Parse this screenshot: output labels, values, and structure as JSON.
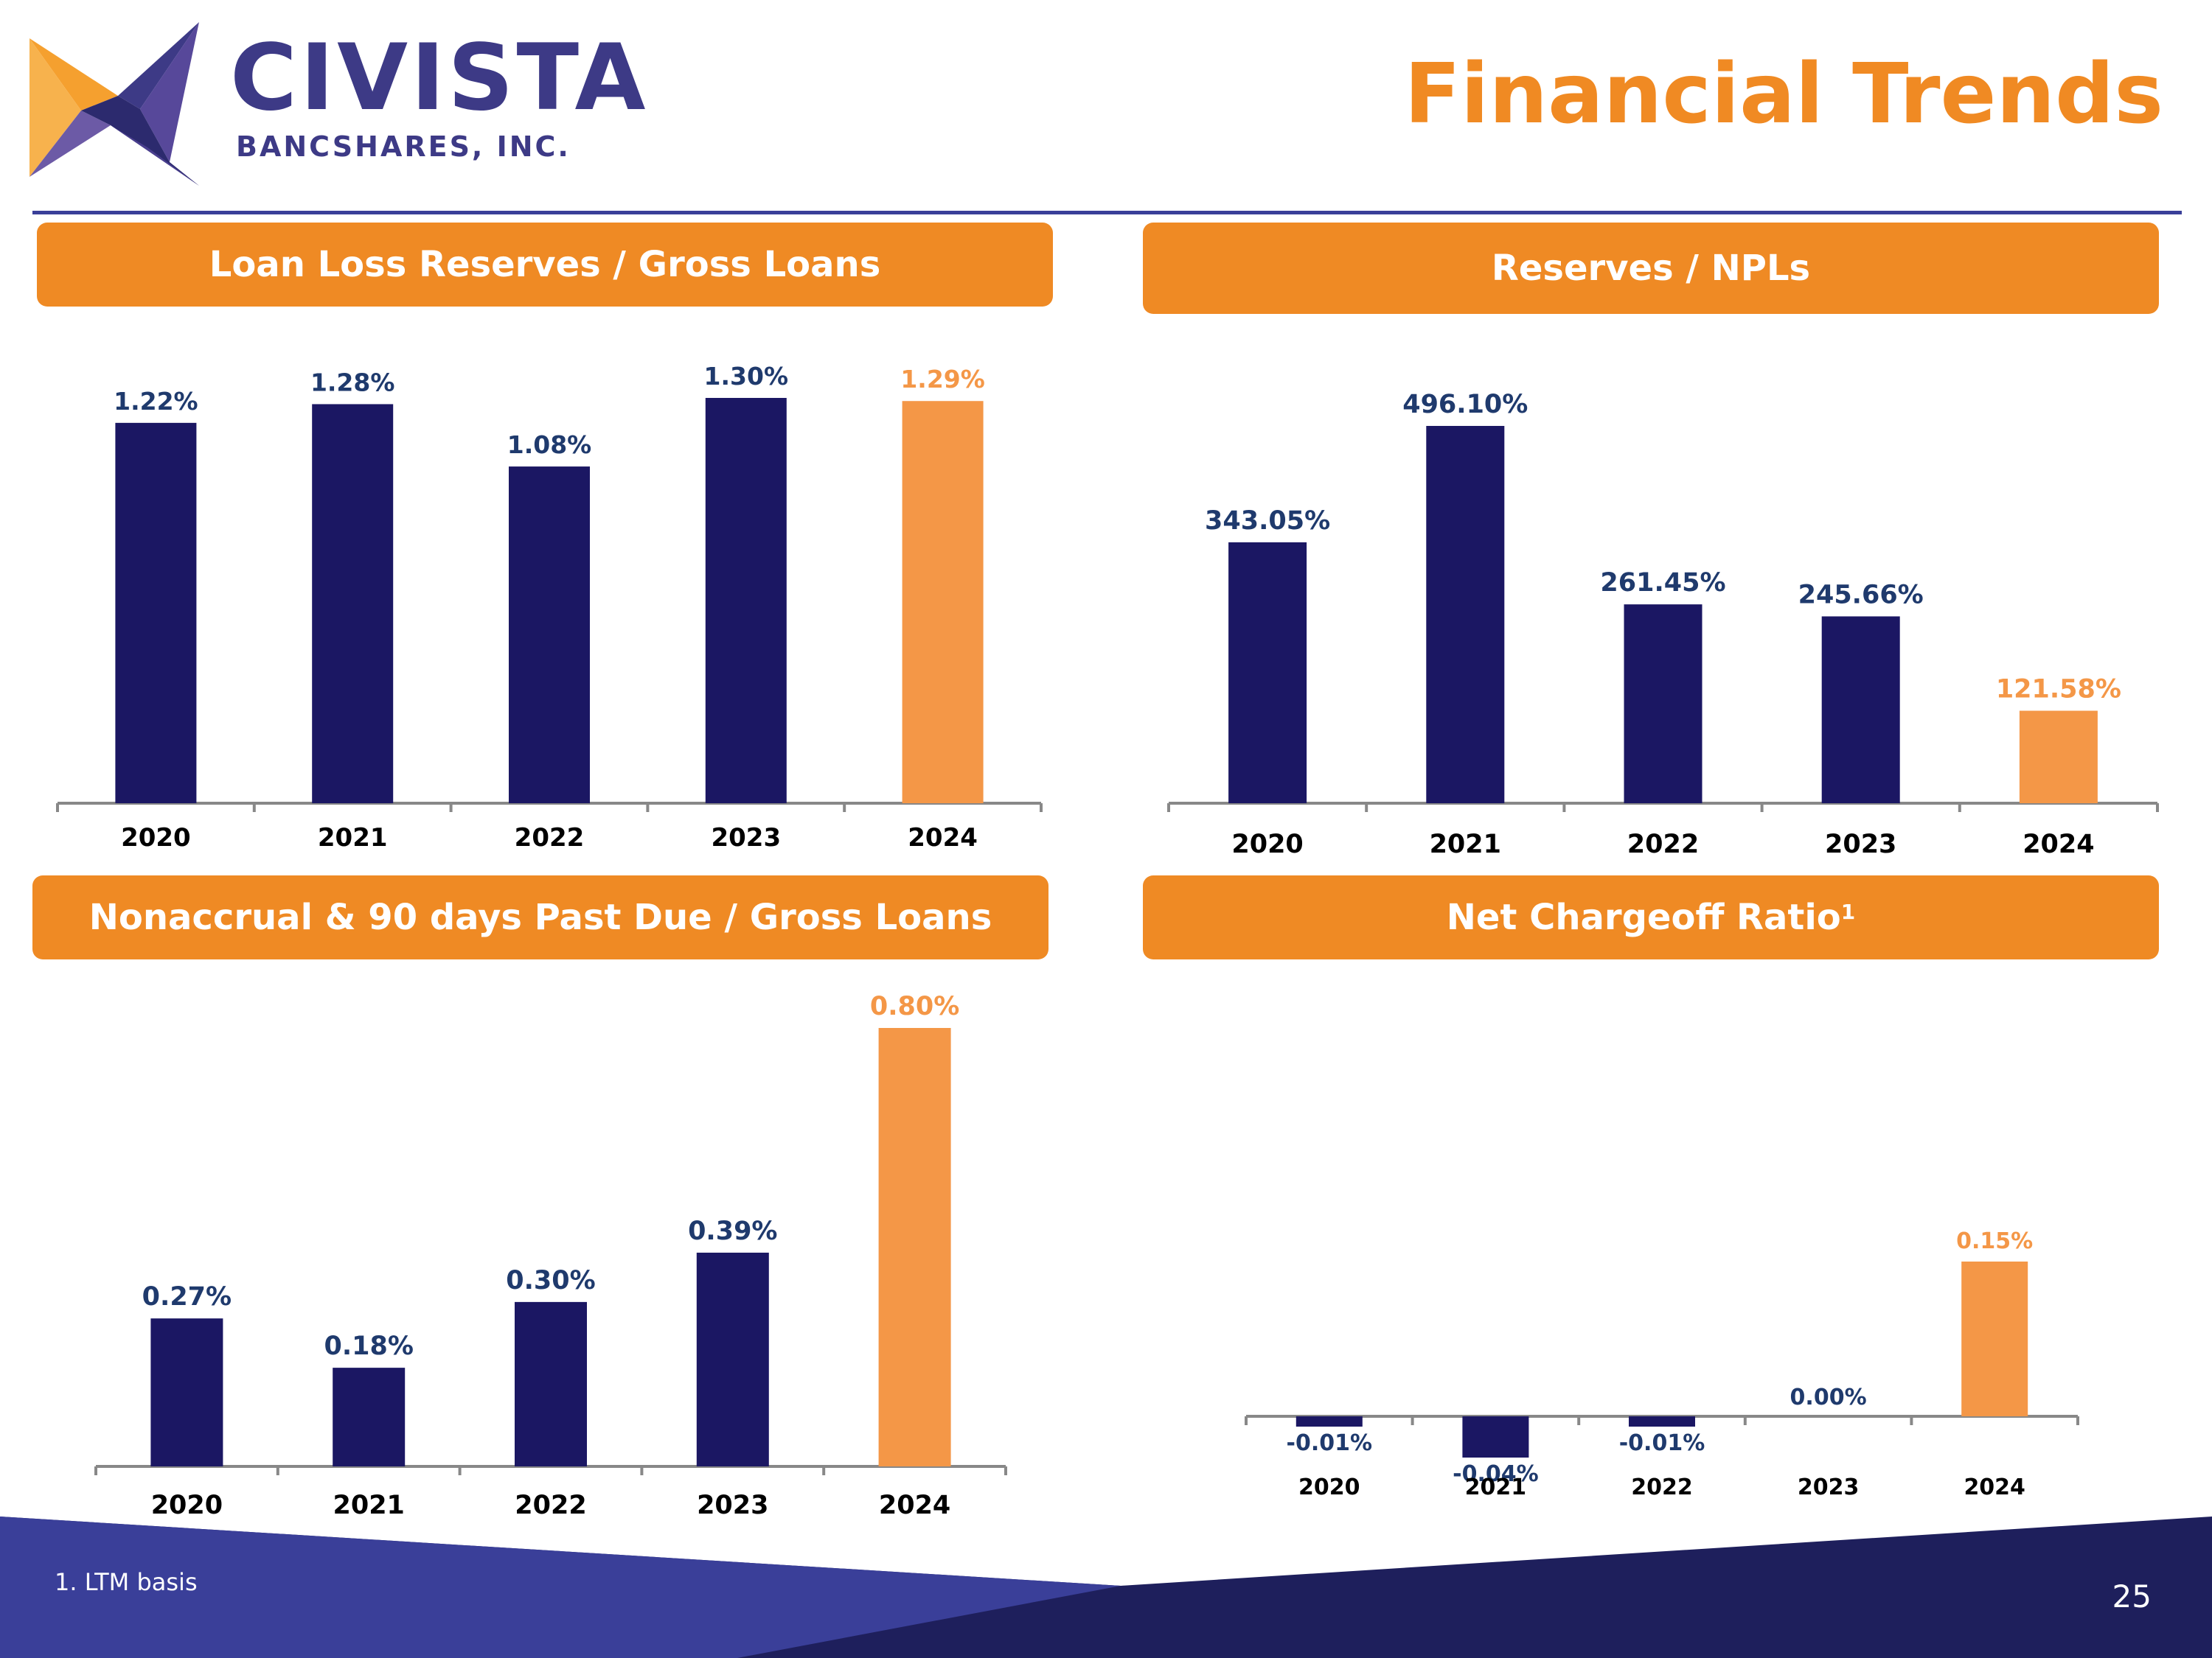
{
  "logo": {
    "name": "CIVISTA",
    "subtitle": "BANCSHARES, INC."
  },
  "page": {
    "title": "Financial Trends",
    "footnote": "1. LTM basis",
    "number": "25"
  },
  "colors": {
    "navy": "#1b1763",
    "orange": "#f49747",
    "header_orange": "#ef8a24",
    "label_navy": "#1f3a6d",
    "label_orange": "#f49747"
  },
  "panels": [
    {
      "header": "Loan Loss Reserves / Gross Loans",
      "header_sup": ""
    },
    {
      "header": "Reserves / NPLs",
      "header_sup": ""
    },
    {
      "header": "Nonaccrual & 90 days Past Due / Gross Loans",
      "header_sup": ""
    },
    {
      "header": "Net Chargeoff Ratio",
      "header_sup": "1"
    }
  ],
  "chart_data": [
    {
      "type": "bar",
      "title": "Loan Loss Reserves / Gross Loans",
      "categories": [
        "2020",
        "2021",
        "2022",
        "2023",
        "2024"
      ],
      "values": [
        1.22,
        1.28,
        1.08,
        1.3,
        1.29
      ],
      "labels": [
        "1.22%",
        "1.28%",
        "1.08%",
        "1.30%",
        "1.29%"
      ],
      "highlight_index": 4,
      "ylim": [
        0,
        1.3
      ]
    },
    {
      "type": "bar",
      "title": "Reserves / NPLs",
      "categories": [
        "2020",
        "2021",
        "2022",
        "2023",
        "2024"
      ],
      "values": [
        343.05,
        496.1,
        261.45,
        245.66,
        121.58
      ],
      "labels": [
        "343.05%",
        "496.10%",
        "261.45%",
        "245.66%",
        "121.58%"
      ],
      "highlight_index": 4,
      "ylim": [
        0,
        496.1
      ]
    },
    {
      "type": "bar",
      "title": "Nonaccrual & 90 days Past Due / Gross Loans",
      "categories": [
        "2020",
        "2021",
        "2022",
        "2023",
        "2024"
      ],
      "values": [
        0.27,
        0.18,
        0.3,
        0.39,
        0.8
      ],
      "labels": [
        "0.27%",
        "0.18%",
        "0.30%",
        "0.39%",
        "0.80%"
      ],
      "highlight_index": 4,
      "ylim": [
        0,
        0.8
      ]
    },
    {
      "type": "bar",
      "title": "Net Chargeoff Ratio",
      "categories": [
        "2020",
        "2021",
        "2022",
        "2023",
        "2024"
      ],
      "values": [
        -0.01,
        -0.04,
        -0.01,
        0.0,
        0.15
      ],
      "labels": [
        "-0.01%",
        "-0.04%",
        "-0.01%",
        "0.00%",
        "0.15%"
      ],
      "highlight_index": 4,
      "ylim": [
        -0.04,
        1.0
      ]
    }
  ]
}
